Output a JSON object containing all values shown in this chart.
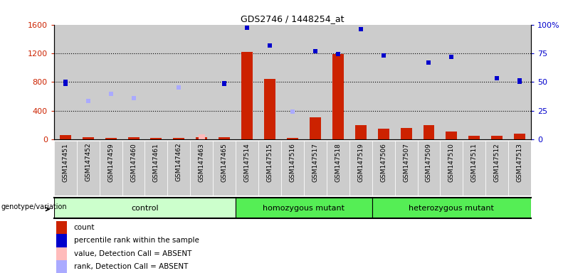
{
  "title": "GDS2746 / 1448254_at",
  "samples": [
    "GSM147451",
    "GSM147452",
    "GSM147459",
    "GSM147460",
    "GSM147461",
    "GSM147462",
    "GSM147463",
    "GSM147465",
    "GSM147514",
    "GSM147515",
    "GSM147516",
    "GSM147517",
    "GSM147518",
    "GSM147519",
    "GSM147506",
    "GSM147507",
    "GSM147509",
    "GSM147510",
    "GSM147511",
    "GSM147512",
    "GSM147513"
  ],
  "groups": [
    {
      "label": "control",
      "start": 0,
      "end": 8,
      "color": "#ccffcc"
    },
    {
      "label": "homozygous mutant",
      "start": 8,
      "end": 14,
      "color": "#55ee55"
    },
    {
      "label": "heterozygous mutant",
      "start": 14,
      "end": 21,
      "color": "#55ee55"
    }
  ],
  "count_values": [
    55,
    30,
    20,
    30,
    20,
    20,
    25,
    30,
    1220,
    840,
    15,
    310,
    1190,
    200,
    150,
    160,
    200,
    110,
    45,
    45,
    75
  ],
  "rank_values": [
    800,
    530,
    630,
    570,
    null,
    720,
    null,
    780,
    null,
    null,
    390,
    null,
    1190,
    null,
    null,
    null,
    null,
    null,
    null,
    null,
    820
  ],
  "rank_absent": [
    false,
    true,
    true,
    true,
    null,
    true,
    null,
    false,
    null,
    null,
    true,
    null,
    false,
    null,
    null,
    null,
    null,
    null,
    null,
    null,
    false
  ],
  "percentile_values": [
    48,
    null,
    null,
    null,
    null,
    null,
    null,
    48,
    97,
    82,
    null,
    77,
    null,
    96,
    73,
    null,
    67,
    72,
    null,
    53,
    50
  ],
  "value_absent_bars": [
    null,
    null,
    null,
    null,
    null,
    null,
    70,
    null,
    null,
    null,
    null,
    null,
    null,
    null,
    null,
    null,
    null,
    null,
    null,
    null,
    null
  ],
  "ylim_left": [
    0,
    1600
  ],
  "ylim_right": [
    0,
    100
  ],
  "yticks_left": [
    0,
    400,
    800,
    1200,
    1600
  ],
  "yticks_right": [
    0,
    25,
    50,
    75,
    100
  ],
  "bar_color": "#cc2200",
  "bar_absent_color": "#ffbbbb",
  "rank_color_present": "#0000cc",
  "rank_color_absent": "#aaaaff",
  "percentile_color": "#0000cc",
  "bg_color": "#ffffff",
  "col_bg": "#cccccc",
  "genotype_label": "genotype/variation"
}
